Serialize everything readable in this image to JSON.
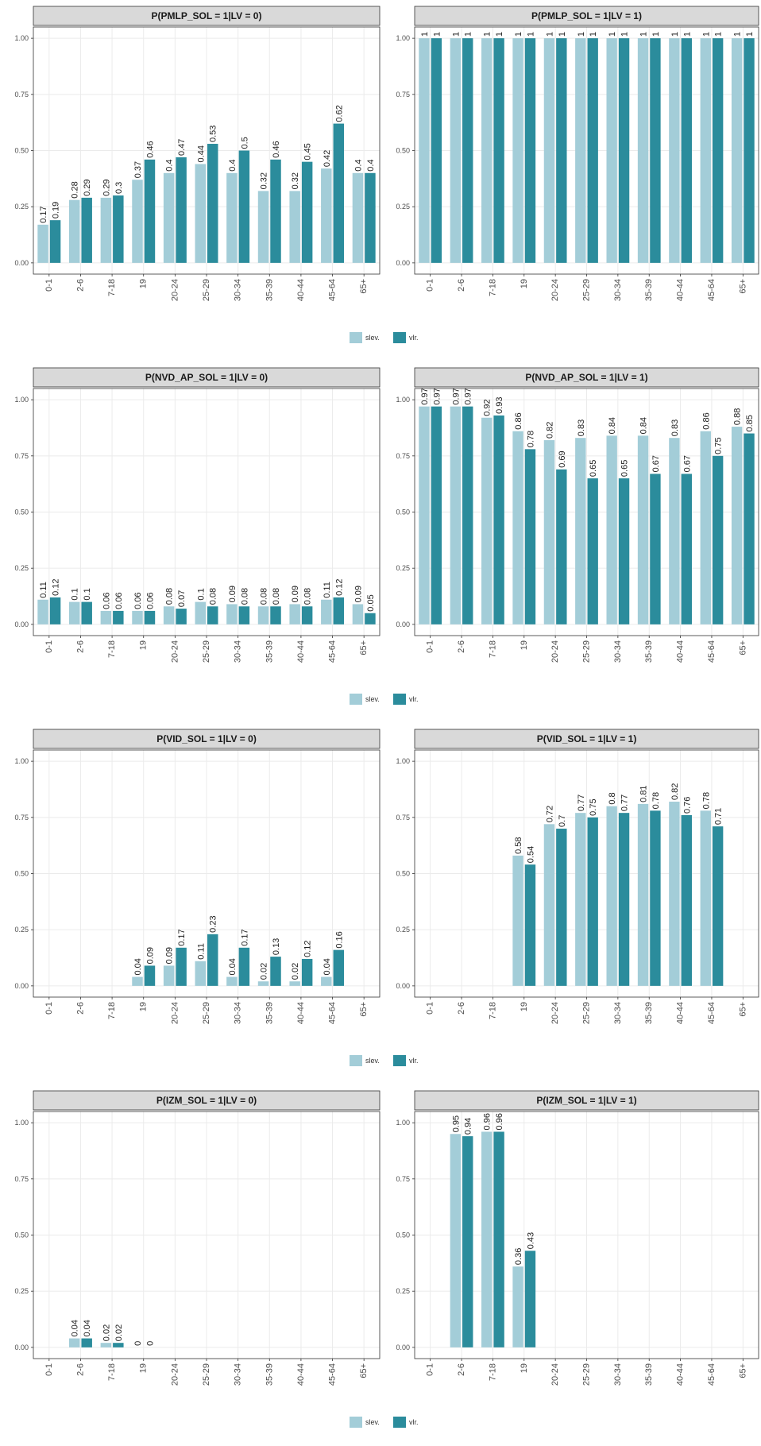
{
  "chart_data": [
    {
      "type": "bar",
      "title": "P(PMLP_SOL = 1|LV = 0)",
      "categories": [
        "0-1",
        "2-6",
        "7-18",
        "19",
        "20-24",
        "25-29",
        "30-34",
        "35-39",
        "40-44",
        "45-64",
        "65+"
      ],
      "series": [
        {
          "name": "slev.",
          "color": "#a3cdd8",
          "values": [
            0.17,
            0.28,
            0.29,
            0.37,
            0.4,
            0.44,
            0.4,
            0.32,
            0.32,
            0.42,
            0.4
          ]
        },
        {
          "name": "vlr.",
          "color": "#2b8c9c",
          "values": [
            0.19,
            0.29,
            0.3,
            0.46,
            0.47,
            0.53,
            0.5,
            0.46,
            0.45,
            0.62,
            0.4
          ]
        }
      ],
      "ylim": [
        -0.05,
        1.05
      ],
      "yticks": [
        {
          "value": 0,
          "label": "0.00"
        },
        {
          "value": 0.25,
          "label": "0.25"
        },
        {
          "value": 0.5,
          "label": "0.50"
        },
        {
          "value": 0.75,
          "label": "0.75"
        },
        {
          "value": 1,
          "label": "1.00"
        }
      ],
      "grid": true
    },
    {
      "type": "bar",
      "title": "P(PMLP_SOL = 1|LV = 1)",
      "categories": [
        "0-1",
        "2-6",
        "7-18",
        "19",
        "20-24",
        "25-29",
        "30-34",
        "35-39",
        "40-44",
        "45-64",
        "65+"
      ],
      "series": [
        {
          "color": "#a3cdd8",
          "values": [
            1,
            1,
            1,
            1,
            1,
            1,
            1,
            1,
            1,
            1,
            1
          ]
        },
        {
          "color": "#2b8c9c",
          "values": [
            1,
            1,
            1,
            1,
            1,
            1,
            1,
            1,
            1,
            1,
            1
          ]
        }
      ],
      "ylim": [
        -0.05,
        1.05
      ],
      "yticks": [
        {
          "value": 0,
          "label": "0.00"
        },
        {
          "value": 0.25,
          "label": "0.25"
        },
        {
          "value": 0.5,
          "label": "0.50"
        },
        {
          "value": 0.75,
          "label": "0.75"
        },
        {
          "value": 1,
          "label": "1.00"
        }
      ],
      "grid": true
    },
    {
      "type": "bar",
      "title": "P(NVD_AP_SOL = 1|LV = 0)",
      "categories": [
        "0-1",
        "2-6",
        "7-18",
        "19",
        "20-24",
        "25-29",
        "30-34",
        "35-39",
        "40-44",
        "45-64",
        "65+"
      ],
      "series": [
        {
          "name": "slev.",
          "color": "#a3cdd8",
          "values": [
            0.11,
            0.1,
            0.06,
            0.06,
            0.08,
            0.1,
            0.09,
            0.08,
            0.09,
            0.11,
            0.09
          ]
        },
        {
          "name": "vlr.",
          "color": "#2b8c9c",
          "values": [
            0.12,
            0.1,
            0.06,
            0.06,
            0.07,
            0.08,
            0.08,
            0.08,
            0.08,
            0.12,
            0.05
          ]
        }
      ],
      "ylim": [
        -0.05,
        1.05
      ],
      "yticks": [
        {
          "value": 0,
          "label": "0.00"
        },
        {
          "value": 0.25,
          "label": "0.25"
        },
        {
          "value": 0.5,
          "label": "0.50"
        },
        {
          "value": 0.75,
          "label": "0.75"
        },
        {
          "value": 1,
          "label": "1.00"
        }
      ],
      "grid": true
    },
    {
      "type": "bar",
      "title": "P(NVD_AP_SOL = 1|LV = 1)",
      "categories": [
        "0-1",
        "2-6",
        "7-18",
        "19",
        "20-24",
        "25-29",
        "30-34",
        "35-39",
        "40-44",
        "45-64",
        "65+"
      ],
      "series": [
        {
          "color": "#a3cdd8",
          "values": [
            0.97,
            0.97,
            0.92,
            0.86,
            0.82,
            0.83,
            0.84,
            0.84,
            0.83,
            0.86,
            0.88
          ]
        },
        {
          "color": "#2b8c9c",
          "values": [
            0.97,
            0.97,
            0.93,
            0.78,
            0.69,
            0.65,
            0.65,
            0.67,
            0.67,
            0.75,
            0.85
          ]
        }
      ],
      "ylim": [
        -0.05,
        1.05
      ],
      "yticks": [
        {
          "value": 0,
          "label": "0.00"
        },
        {
          "value": 0.25,
          "label": "0.25"
        },
        {
          "value": 0.5,
          "label": "0.50"
        },
        {
          "value": 0.75,
          "label": "0.75"
        },
        {
          "value": 1,
          "label": "1.00"
        }
      ],
      "grid": true
    },
    {
      "type": "bar",
      "title": "P(VID_SOL = 1|LV = 0)",
      "categories": [
        "0-1",
        "2-6",
        "7-18",
        "19",
        "20-24",
        "25-29",
        "30-34",
        "35-39",
        "40-44",
        "45-64",
        "65+"
      ],
      "series": [
        {
          "name": "slev.",
          "color": "#a3cdd8",
          "values": [
            null,
            null,
            null,
            0.04,
            0.09,
            0.11,
            0.04,
            0.02,
            0.02,
            0.04,
            null
          ]
        },
        {
          "name": "vlr.",
          "color": "#2b8c9c",
          "values": [
            null,
            null,
            null,
            0.09,
            0.17,
            0.23,
            0.17,
            0.13,
            0.12,
            0.16,
            null
          ]
        }
      ],
      "ylim": [
        -0.05,
        1.05
      ],
      "yticks": [
        {
          "value": 0,
          "label": "0.00"
        },
        {
          "value": 0.25,
          "label": "0.25"
        },
        {
          "value": 0.5,
          "label": "0.50"
        },
        {
          "value": 0.75,
          "label": "0.75"
        },
        {
          "value": 1,
          "label": "1.00"
        }
      ],
      "grid": true
    },
    {
      "type": "bar",
      "title": "P(VID_SOL = 1|LV = 1)",
      "categories": [
        "0-1",
        "2-6",
        "7-18",
        "19",
        "20-24",
        "25-29",
        "30-34",
        "35-39",
        "40-44",
        "45-64",
        "65+"
      ],
      "series": [
        {
          "color": "#a3cdd8",
          "values": [
            null,
            null,
            null,
            0.58,
            0.72,
            0.77,
            0.8,
            0.81,
            0.82,
            0.78,
            null
          ]
        },
        {
          "color": "#2b8c9c",
          "values": [
            null,
            null,
            null,
            0.54,
            0.7,
            0.75,
            0.77,
            0.78,
            0.76,
            0.71,
            null
          ]
        }
      ],
      "ylim": [
        -0.05,
        1.05
      ],
      "yticks": [
        {
          "value": 0,
          "label": "0.00"
        },
        {
          "value": 0.25,
          "label": "0.25"
        },
        {
          "value": 0.5,
          "label": "0.50"
        },
        {
          "value": 0.75,
          "label": "0.75"
        },
        {
          "value": 1,
          "label": "1.00"
        }
      ],
      "grid": true
    },
    {
      "type": "bar",
      "title": "P(IZM_SOL = 1|LV = 0)",
      "categories": [
        "0-1",
        "2-6",
        "7-18",
        "19",
        "20-24",
        "25-29",
        "30-34",
        "35-39",
        "40-44",
        "45-64",
        "65+"
      ],
      "series": [
        {
          "name": "slev.",
          "color": "#a3cdd8",
          "values": [
            null,
            0.04,
            0.02,
            0,
            null,
            null,
            null,
            null,
            null,
            null,
            null
          ]
        },
        {
          "name": "vlr.",
          "color": "#2b8c9c",
          "values": [
            null,
            0.04,
            0.02,
            0,
            null,
            null,
            null,
            null,
            null,
            null,
            null
          ]
        }
      ],
      "ylim": [
        -0.05,
        1.05
      ],
      "yticks": [
        {
          "value": 0,
          "label": "0.00"
        },
        {
          "value": 0.25,
          "label": "0.25"
        },
        {
          "value": 0.5,
          "label": "0.50"
        },
        {
          "value": 0.75,
          "label": "0.75"
        },
        {
          "value": 1,
          "label": "1.00"
        }
      ],
      "grid": true
    },
    {
      "type": "bar",
      "title": "P(IZM_SOL = 1|LV = 1)",
      "categories": [
        "0-1",
        "2-6",
        "7-18",
        "19",
        "20-24",
        "25-29",
        "30-34",
        "35-39",
        "40-44",
        "45-64",
        "65+"
      ],
      "series": [
        {
          "color": "#a3cdd8",
          "values": [
            null,
            0.95,
            0.96,
            0.36,
            null,
            null,
            null,
            null,
            null,
            null,
            null
          ]
        },
        {
          "color": "#2b8c9c",
          "values": [
            null,
            0.94,
            0.96,
            0.43,
            null,
            null,
            null,
            null,
            null,
            null,
            null
          ]
        }
      ],
      "ylim": [
        -0.05,
        1.05
      ],
      "yticks": [
        {
          "value": 0,
          "label": "0.00"
        },
        {
          "value": 0.25,
          "label": "0.25"
        },
        {
          "value": 0.5,
          "label": "0.50"
        },
        {
          "value": 0.75,
          "label": "0.75"
        },
        {
          "value": 1,
          "label": "1.00"
        }
      ],
      "grid": true
    }
  ]
}
